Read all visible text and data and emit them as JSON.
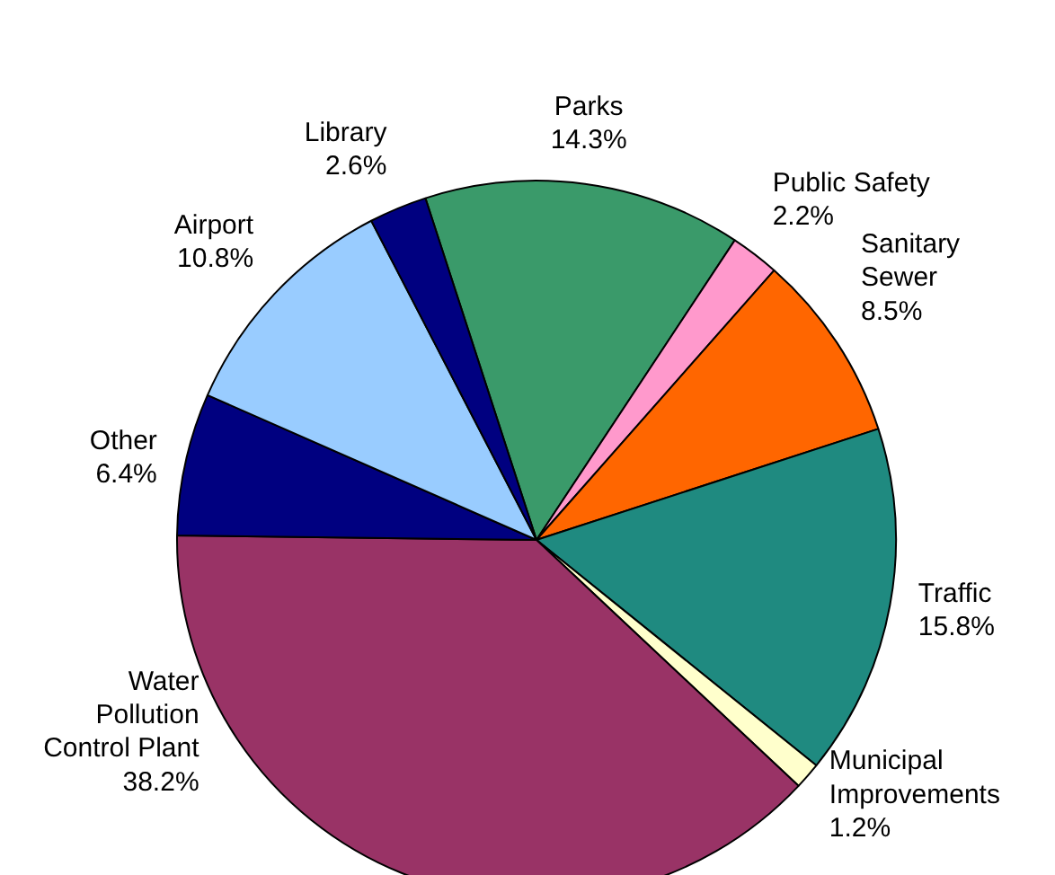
{
  "chart_data": {
    "type": "pie",
    "categories": [
      "Parks",
      "Public Safety",
      "Sanitary Sewer",
      "Traffic",
      "Municipal Improvements",
      "Water Pollution Control Plant",
      "Other",
      "Airport",
      "Library"
    ],
    "values": [
      14.3,
      2.2,
      8.5,
      15.8,
      1.2,
      38.2,
      6.4,
      10.8,
      2.6
    ],
    "colors": [
      "#3a9a6a",
      "#ff99cc",
      "#ff6600",
      "#1f8a80",
      "#ffffcc",
      "#993366",
      "#000080",
      "#99ccff",
      "#000080"
    ],
    "value_labels": [
      "14.3%",
      "2.2%",
      "8.5%",
      "15.8%",
      "1.2%",
      "38.2%",
      "6.4%",
      "10.8%",
      "2.6%"
    ]
  }
}
